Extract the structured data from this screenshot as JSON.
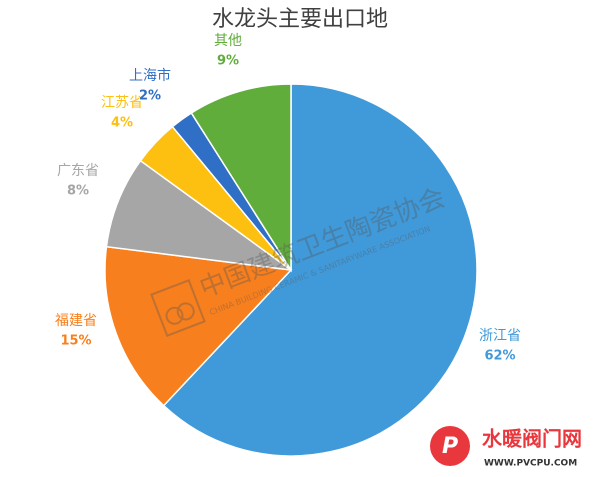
{
  "chart_data": {
    "type": "pie",
    "title": "水龙头主要出口地",
    "categories": [
      "浙江省",
      "福建省",
      "广东省",
      "江苏省",
      "上海市",
      "其他"
    ],
    "values": [
      62,
      15,
      8,
      4,
      2,
      9
    ],
    "value_labels": [
      "62%",
      "15%",
      "8%",
      "4%",
      "2%",
      "9%"
    ],
    "colors": [
      "#4099d9",
      "#f87f1d",
      "#a6a6a6",
      "#fdbf10",
      "#2f6fc5",
      "#60ad3c"
    ]
  },
  "watermarks": {
    "association_cn": "中国建筑卫生陶瓷协会",
    "association_en": "CHINA BUILDING CERAMIC & SANITARYWARE ASSOCIATION",
    "site_cn": "水暖阀门网",
    "site_url": "WWW.PVCPU.COM"
  }
}
